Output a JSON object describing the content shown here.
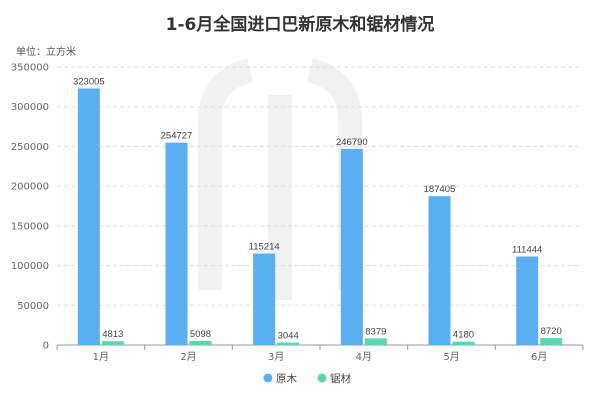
{
  "chart_data": {
    "type": "bar",
    "title": "1-6月全国进口巴新原木和锯材情况",
    "unit_label": "单位：立方米",
    "categories": [
      "1月",
      "2月",
      "3月",
      "4月",
      "5月",
      "6月"
    ],
    "series": [
      {
        "name": "原木",
        "values": [
          323005,
          254727,
          115214,
          246790,
          187405,
          111444
        ],
        "color": "#5aaff0"
      },
      {
        "name": "锯材",
        "values": [
          4813,
          5098,
          3044,
          8379,
          4180,
          8720
        ],
        "color": "#5cd6b0"
      }
    ],
    "ylim": [
      0,
      350000
    ],
    "yticks": [
      "0",
      "50000",
      "100000",
      "150000",
      "200000",
      "250000",
      "300000",
      "350000"
    ],
    "grid": true,
    "legend_position": "bottom"
  }
}
